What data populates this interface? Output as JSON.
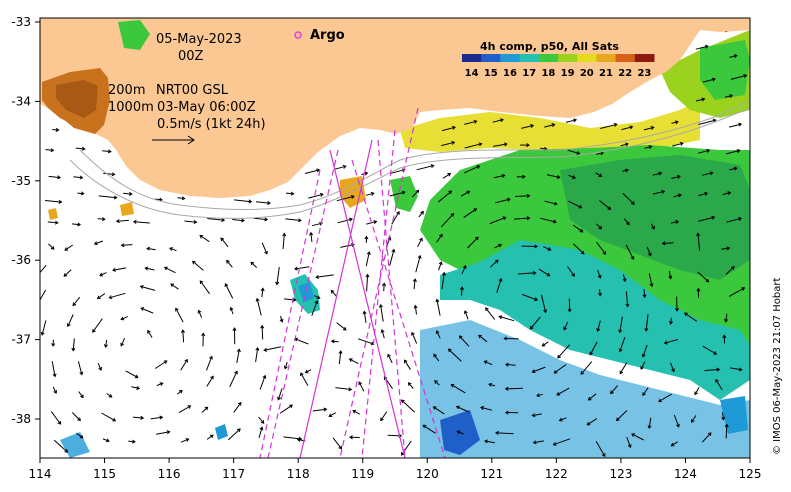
{
  "map": {
    "date_label": "05-May-2023",
    "time_label": "00Z",
    "argo_label": "Argo",
    "isobath_label_200": "200m",
    "isobath_label_1000": "1000m",
    "product_label": "NRT00 GSL",
    "valid_time_label": "03-May 06:00Z",
    "scale_label": "0.5m/s (1kt 24h)",
    "credit": "© IMOS 06-May-2023 21:07 Hobart",
    "colors": {
      "land": "#fbc893",
      "track": "#d633d6",
      "argo": "#e040e0",
      "isobath": "#a8a8a8"
    }
  },
  "colorbar": {
    "title": "4h comp, p50, All Sats",
    "ticks": [
      "14",
      "15",
      "16",
      "17",
      "18",
      "19",
      "20",
      "21",
      "22",
      "23"
    ],
    "colors": [
      "#1a2a8c",
      "#1f5fc8",
      "#1e9ad6",
      "#25c0b0",
      "#3cc83c",
      "#9ad21e",
      "#e6dc1e",
      "#e8a81e",
      "#d6601a",
      "#8c1a10"
    ]
  },
  "axes": {
    "x_ticks": [
      "114",
      "115",
      "116",
      "117",
      "118",
      "119",
      "120",
      "121",
      "122",
      "123",
      "124",
      "125"
    ],
    "y_ticks": [
      "-33",
      "-34",
      "-35",
      "-36",
      "-37",
      "-38"
    ]
  }
}
